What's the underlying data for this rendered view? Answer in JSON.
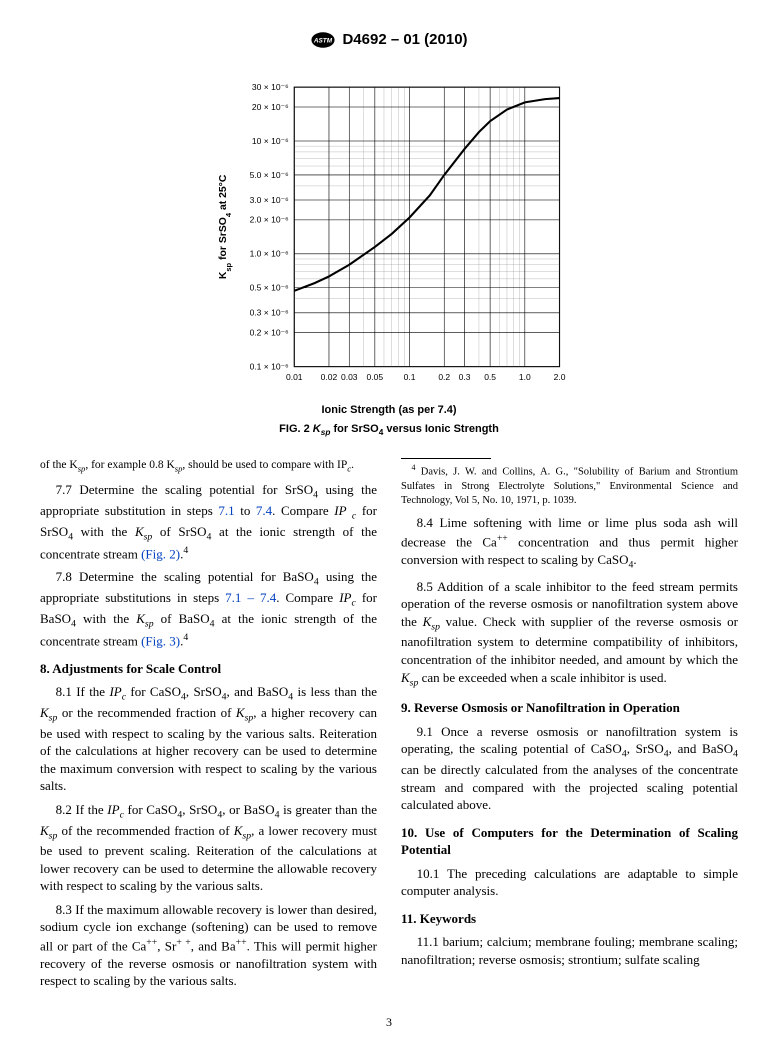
{
  "header": {
    "doc_id": "D4692 – 01 (2010)"
  },
  "figure": {
    "caption_prefix": "FIG. 2 ",
    "caption_var": "K",
    "caption_sub": "sp",
    "caption_rest": " for SrSO",
    "caption_sub2": "4",
    "caption_suffix": " versus Ionic Strength",
    "x_axis_label": "Ionic Strength (as per 7.4)",
    "y_axis_label_prefix": "K",
    "y_axis_label_sub": "sp",
    "y_axis_label_rest": " for SrSO",
    "y_axis_label_sub2": "4",
    "y_axis_label_suffix": " at 25°C",
    "type": "line",
    "x_ticks": [
      "0.01",
      "0.02",
      "0.03",
      "0.05",
      "0.1",
      "0.2",
      "0.3",
      "0.5",
      "1.0",
      "2.0"
    ],
    "y_ticks": [
      "0.1 × 10⁻⁶",
      "0.2 × 10⁻⁶",
      "0.3 × 10⁻⁶",
      "0.5 × 10⁻⁶",
      "1.0 × 10⁻⁶",
      "2.0 × 10⁻⁶",
      "3.0 × 10⁻⁶",
      "5.0 × 10⁻⁶",
      "10 × 10⁻⁶",
      "20 × 10⁻⁶",
      "30 × 10⁻⁶"
    ],
    "curve_points": [
      [
        0.01,
        0.47
      ],
      [
        0.015,
        0.55
      ],
      [
        0.02,
        0.63
      ],
      [
        0.03,
        0.8
      ],
      [
        0.05,
        1.15
      ],
      [
        0.07,
        1.5
      ],
      [
        0.1,
        2.1
      ],
      [
        0.15,
        3.3
      ],
      [
        0.2,
        5.0
      ],
      [
        0.3,
        8.5
      ],
      [
        0.4,
        12.0
      ],
      [
        0.5,
        15.0
      ],
      [
        0.7,
        19.0
      ],
      [
        1.0,
        22.0
      ],
      [
        1.5,
        23.5
      ],
      [
        2.0,
        24.0
      ]
    ],
    "x_range": [
      0.01,
      2.0
    ],
    "y_range": [
      0.1,
      30
    ],
    "plot_bg": "#ffffff",
    "grid_color": "#888888",
    "axis_color": "#000000",
    "curve_color": "#000000",
    "curve_width": 2.2,
    "tick_font_size": 9,
    "label_font_size": 11
  },
  "body": {
    "runin": "of the K",
    "runin_sub": "sp",
    "runin_mid": ", for example 0.8 K",
    "runin_sub2": "sp",
    "runin_end": ", should be used to compare with IP",
    "runin_sub3": "c",
    "runin_period": ".",
    "p77_a": "7.7 Determine the scaling potential for SrSO",
    "p77_b": " using the appropriate substitution in steps ",
    "p77_link1": "7.1",
    "p77_c": " to ",
    "p77_link2": "7.4",
    "p77_d": ". Compare ",
    "p77_var1": "IP",
    "p77_sub1": "c",
    "p77_e": " for SrSO",
    "p77_f": " with the ",
    "p77_var2": "K",
    "p77_sub2": "sp",
    "p77_g": " of SrSO",
    "p77_h": " at the ionic strength of the concentrate stream ",
    "p77_link3": "(Fig. 2)",
    "p77_i": ".",
    "p77_foot": "4",
    "p78_a": "7.8 Determine the scaling potential for BaSO",
    "p78_b": " using the appropriate substitutions in steps ",
    "p78_link1": "7.1 – 7.4",
    "p78_c": ". Compare ",
    "p78_var1": "IP",
    "p78_sub1": "c",
    "p78_d": " for BaSO",
    "p78_e": " with the ",
    "p78_var2": "K",
    "p78_sub2": "sp",
    "p78_f": " of BaSO",
    "p78_g": " at the ionic strength of the concentrate stream ",
    "p78_link2": "(Fig. 3)",
    "p78_h": ".",
    "p78_foot": "4",
    "sec8": "8. Adjustments for Scale Control",
    "p81": "8.1 If the IPc for CaSO4, SrSO4, and BaSO4 is less than the Ksp or the recommended fraction of Ksp, a higher recovery can be used with respect to scaling by the various salts. Reiteration of the calculations at higher recovery can be used to determine the maximum conversion with respect to scaling by the various salts.",
    "p82": "8.2 If the IPc for CaSO4, SrSO4, or BaSO4 is greater than the Ksp of the recommended fraction of Ksp, a lower recovery must be used to prevent scaling. Reiteration of the calculations at lower recovery can be used to determine the allowable recovery with respect to scaling by the various salts.",
    "p83": "8.3 If the maximum allowable recovery is lower than desired, sodium cycle ion exchange (softening) can be used to remove all or part of the Ca++, Sr+ +, and Ba++. This will permit higher recovery of the reverse osmosis or nanofiltration system with respect to scaling by the various salts.",
    "p84": "8.4 Lime softening with lime or lime plus soda ash will decrease the Ca++ concentration and thus permit higher conversion with respect to scaling by CaSO4.",
    "p85": "8.5 Addition of a scale inhibitor to the feed stream permits operation of the reverse osmosis or nanofiltration system above the Ksp value. Check with supplier of the reverse osmosis or nanofiltration system to determine compatibility of inhibitors, concentration of the inhibitor needed, and amount by which the Ksp can be exceeded when a scale inhibitor is used.",
    "sec9": "9. Reverse Osmosis or Nanofiltration in Operation",
    "p91": "9.1 Once a reverse osmosis or nanofiltration system is operating, the scaling potential of CaSO4, SrSO4, and BaSO4 can be directly calculated from the analyses of the concentrate stream and compared with the projected scaling potential calculated above.",
    "sec10": "10. Use of Computers for the Determination of Scaling Potential",
    "p101": "10.1 The preceding calculations are adaptable to simple computer analysis.",
    "sec11": "11. Keywords",
    "p111": "11.1 barium; calcium; membrane fouling; membrane scaling; nanofiltration; reverse osmosis; strontium; sulfate scaling",
    "footnote_num": "4",
    "footnote": " Davis, J. W. and Collins, A. G., \"Solubility of Barium and Strontium Sulfates in Strong Electrolyte Solutions,\" Environmental Science and Technology, Vol 5, No. 10, 1971, p. 1039."
  },
  "page_number": "3"
}
